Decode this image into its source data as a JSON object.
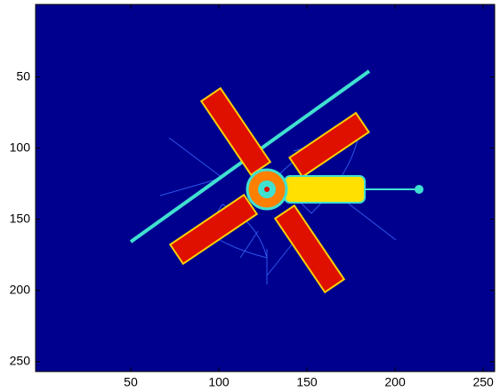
{
  "chart_data": {
    "type": "image",
    "xlim": [
      -4,
      256.5
    ],
    "ylim": [
      -1,
      257
    ],
    "y_reversed": true,
    "xticks": [
      50,
      100,
      150,
      200,
      250
    ],
    "yticks": [
      50,
      100,
      150,
      200,
      250
    ],
    "background": "#00008f"
  }
}
